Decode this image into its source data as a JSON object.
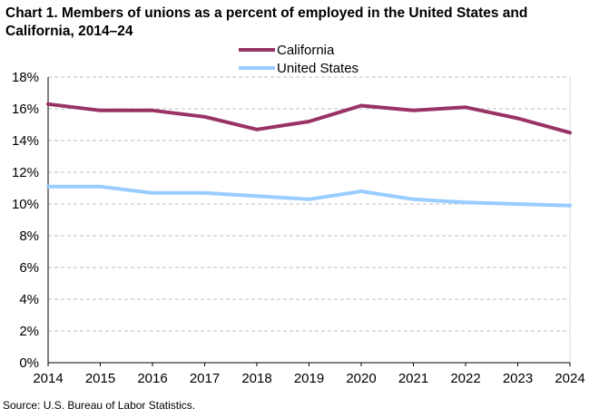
{
  "title_lines": [
    "Chart 1. Members of unions as a percent of employed  in the United States and",
    "California, 2014–24"
  ],
  "source": "Source: U.S. Bureau  of Labor Statistics.",
  "chart_data": {
    "type": "line",
    "title": "Chart 1. Members of unions as a percent of employed in the United States and California, 2014–24",
    "xlabel": "",
    "ylabel": "",
    "x": [
      "2014",
      "2015",
      "2016",
      "2017",
      "2018",
      "2019",
      "2020",
      "2021",
      "2022",
      "2023",
      "2024"
    ],
    "ylim": [
      0,
      18
    ],
    "yticks": [
      0,
      2,
      4,
      6,
      8,
      10,
      12,
      14,
      16,
      18
    ],
    "ytick_labels": [
      "0%",
      "2%",
      "4%",
      "6%",
      "8%",
      "10%",
      "12%",
      "14%",
      "16%",
      "18%"
    ],
    "grid": true,
    "legend_position": "top-center",
    "series": [
      {
        "name": "California",
        "color": "#993366",
        "values": [
          16.3,
          15.9,
          15.9,
          15.5,
          14.7,
          15.2,
          16.2,
          15.9,
          16.1,
          15.4,
          14.5
        ]
      },
      {
        "name": "United States",
        "color": "#99ccff",
        "values": [
          11.1,
          11.1,
          10.7,
          10.7,
          10.5,
          10.3,
          10.8,
          10.3,
          10.1,
          10.0,
          9.9
        ]
      }
    ]
  }
}
